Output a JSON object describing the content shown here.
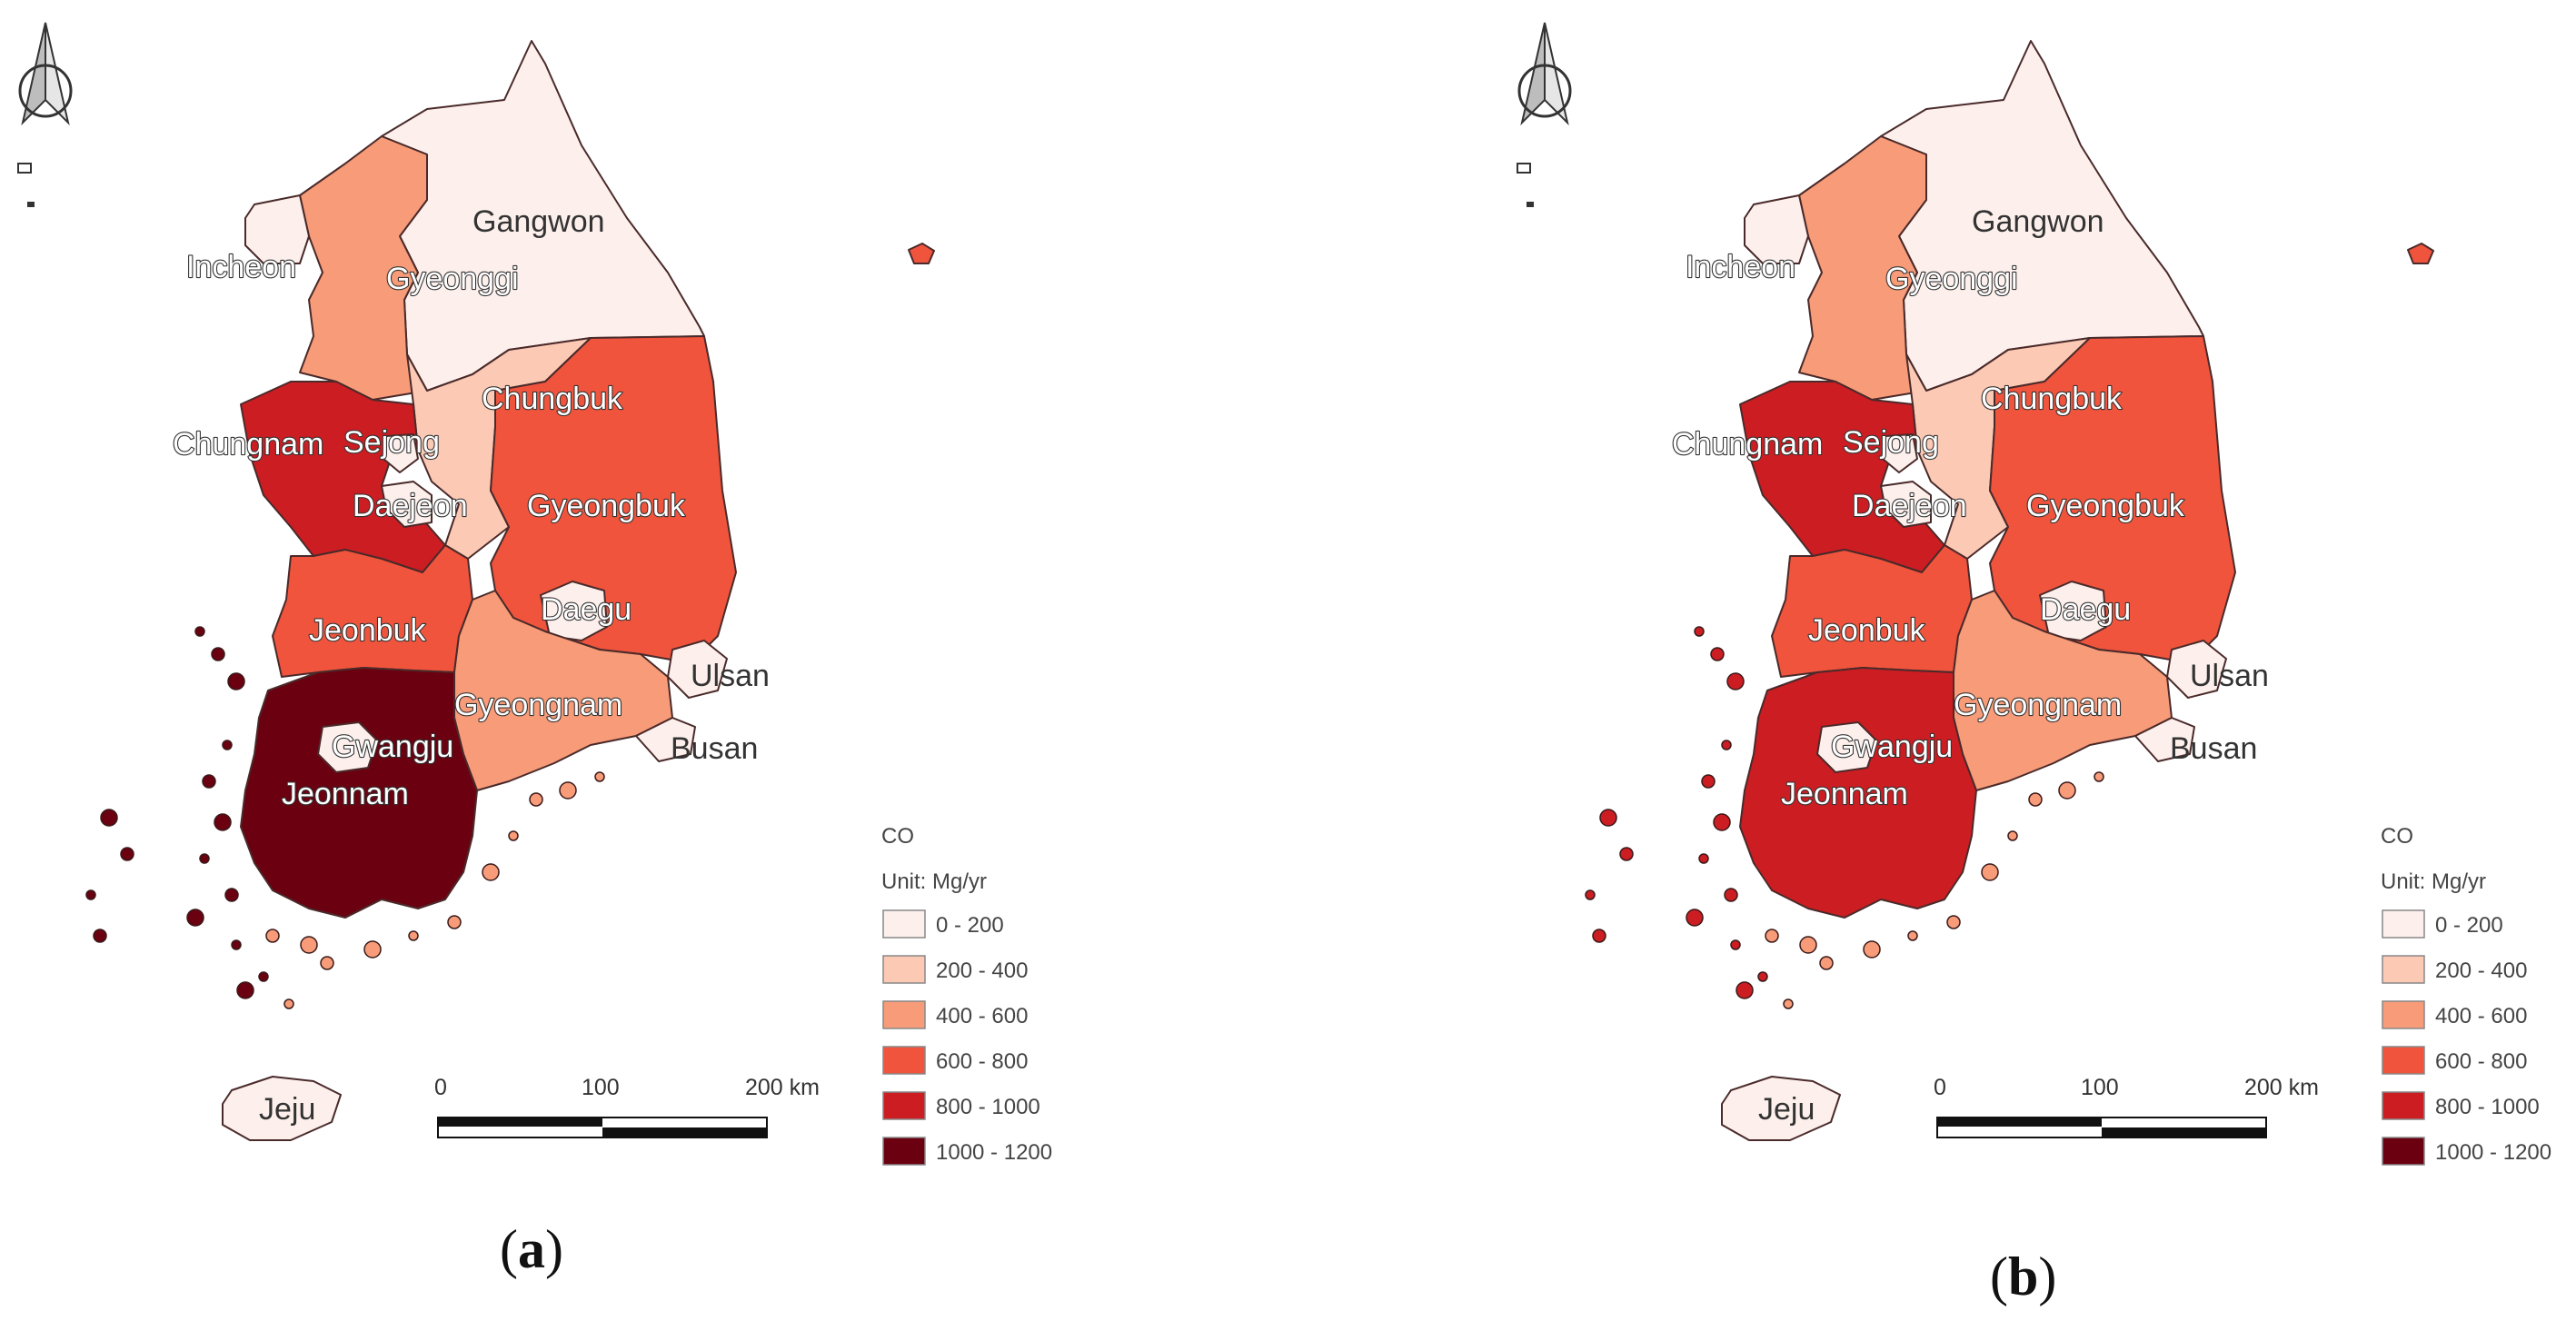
{
  "legend": {
    "title": "CO",
    "unit": "Unit: Mg/yr",
    "classes": [
      {
        "label": "0 - 200",
        "color": "#fdf0ec"
      },
      {
        "label": "200 - 400",
        "color": "#fcc9b4"
      },
      {
        "label": "400 - 600",
        "color": "#f79b78"
      },
      {
        "label": "600 - 800",
        "color": "#f0543d"
      },
      {
        "label": "800 - 1000",
        "color": "#cc1d22"
      },
      {
        "label": "1000 - 1200",
        "color": "#6b0010"
      }
    ]
  },
  "scale_bar": {
    "tick_0": "0",
    "tick_100": "100",
    "tick_200": "200 km"
  },
  "panels": [
    {
      "label": "a",
      "regions": {
        "Gangwon": 0,
        "Gyeonggi": 2,
        "Incheon": 0,
        "Chungbuk": 1,
        "Chungnam": 4,
        "Sejong": 0,
        "Daejeon": 0,
        "Gyeongbuk": 3,
        "Daegu": 0,
        "Jeonbuk": 3,
        "Gyeongnam": 2,
        "Ulsan": 0,
        "Busan": 0,
        "Gwangju": 0,
        "Jeonnam": 5,
        "Jeju": 0,
        "Ulleung": 3
      },
      "labels": {
        "Gangwon": "Gangwon",
        "Incheon": "Incheon",
        "Gyeonggi": "Gyeonggi",
        "Chungbuk": "Chungbuk",
        "Chungnam": "Chungnam",
        "Sejong": "Sejong",
        "Daejeon": "Daejeon",
        "Gyeongbuk": "Gyeongbuk",
        "Daegu": "Daegu",
        "Jeonbuk": "Jeonbuk",
        "Gyeongnam": "Gyeongnam",
        "Ulsan": "Ulsan",
        "Busan": "Busan",
        "Gwangju": "Gwangju",
        "Jeonnam": "Jeonnam",
        "Jeju": "Jeju"
      }
    },
    {
      "label": "b",
      "regions": {
        "Gangwon": 0,
        "Gyeonggi": 2,
        "Incheon": 0,
        "Chungbuk": 1,
        "Chungnam": 4,
        "Sejong": 0,
        "Daejeon": 0,
        "Gyeongbuk": 3,
        "Daegu": 0,
        "Jeonbuk": 3,
        "Gyeongnam": 2,
        "Ulsan": 0,
        "Busan": 0,
        "Gwangju": 0,
        "Jeonnam": 4,
        "Jeju": 0,
        "Ulleung": 3
      },
      "labels": {
        "Gangwon": "Gangwon",
        "Incheon": "Incheon",
        "Gyeonggi": "Gyeonggi",
        "Chungbuk": "Chungbuk",
        "Chungnam": "Chungnam",
        "Sejong": "Sejong",
        "Daejeon": "Daejeon",
        "Gyeongbuk": "Gyeongbuk",
        "Daegu": "Daegu",
        "Jeonbuk": "Jeonbuk",
        "Gyeongnam": "Gyeongnam",
        "Ulsan": "Ulsan",
        "Busan": "Busan",
        "Gwangju": "Gwangju",
        "Jeonnam": "Jeonnam",
        "Jeju": "Jeju"
      }
    }
  ]
}
